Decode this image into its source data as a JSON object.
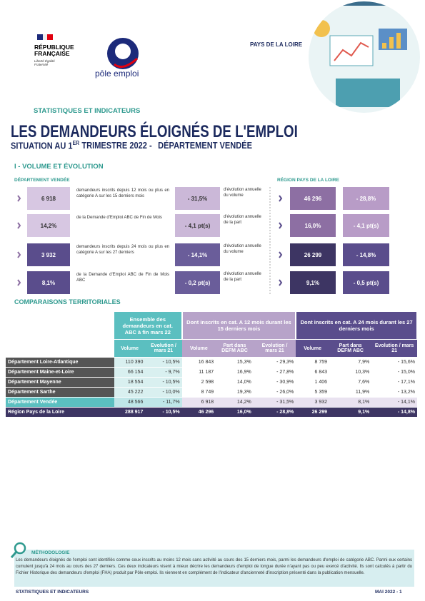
{
  "header": {
    "republique": "RÉPUBLIQUE FRANÇAISE",
    "motto": "Liberté Égalité Fraternité",
    "logo_text": "pôle emploi",
    "region": "PAYS DE LA LOIRE"
  },
  "section_label": "STATISTIQUES ET INDICATEURS",
  "title": "LES DEMANDEURS ÉLOIGNÉS DE L'EMPLOI",
  "subtitle": {
    "main": "SITUATION AU 1",
    "sup": "ER",
    "rest": "TRIMESTRE 2022 -",
    "dept": "DÉPARTEMENT VENDÉE"
  },
  "volume_section": {
    "heading": "I - VOLUME ET ÉVOLUTION",
    "dept_label": "DÉPARTEMENT VENDÉE",
    "region_label": "RÉGION PAYS DE LA LOIRE",
    "rows": [
      {
        "value": "6 918",
        "description": "demandeurs inscrits depuis 12 mois ou plus en catégorie A sur les 15 derniers mois",
        "evolution": "- 31,5%",
        "evolution_description": "d'évolution annuelle du volume",
        "region_value": "46 296",
        "region_evolution": "- 28,8%"
      },
      {
        "value": "14,2%",
        "description": "de la Demande d'Emploi ABC de Fin de Mois",
        "evolution": "- 4,1 pt(s)",
        "evolution_description": "d'évolution annuelle de la part",
        "region_value": "16,0%",
        "region_evolution": "- 4,1 pt(s)"
      },
      {
        "value": "3 932",
        "description": "demandeurs inscrits depuis 24 mois ou plus en catégorie A sur les 27 derniers",
        "evolution": "- 14,1%",
        "evolution_description": "d'évolution annuelle du volume",
        "region_value": "26 299",
        "region_evolution": "- 14,8%"
      },
      {
        "value": "8,1%",
        "description": "de la Demande d'Emploi ABC de Fin de Mois ABC",
        "evolution": "- 0,2 pt(s)",
        "evolution_description": "d'évolution annuelle de la part",
        "region_value": "9,1%",
        "region_evolution": "- 0,5 pt(s)"
      }
    ]
  },
  "comparison": {
    "heading": "COMPARAISONS TERRITORIALES",
    "groups": [
      "Ensemble des demandeurs en cat. ABC à fin mars 22",
      "Dont inscrits en cat. A 12 mois durant les 15 derniers mois",
      "Dont inscrits en cat. A 24 mois durant les 27 derniers mois"
    ],
    "columns": [
      "Volume",
      "Evolution / mars 21",
      "Volume",
      "Part dans DEFM ABC",
      "Evolution / mars 21",
      "Volume",
      "Part dans DEFM ABC",
      "Evolution / mars 21"
    ],
    "rows": [
      [
        "Département Loire-Atlantique",
        "110 390",
        "- 10,5%",
        "16 843",
        "15,3%",
        "- 29,3%",
        "8 759",
        "7,9%",
        "- 15,6%"
      ],
      [
        "Département Maine-et-Loire",
        "66 154",
        "- 9,7%",
        "11 187",
        "16,9%",
        "- 27,8%",
        "6 843",
        "10,3%",
        "- 15,0%"
      ],
      [
        "Département Mayenne",
        "18 554",
        "- 10,5%",
        "2 598",
        "14,0%",
        "- 30,9%",
        "1 406",
        "7,6%",
        "- 17,1%"
      ],
      [
        "Département Sarthe",
        "45 222",
        "- 10,0%",
        "8 749",
        "19,3%",
        "- 26,0%",
        "5 359",
        "11,9%",
        "- 13,2%"
      ],
      [
        "Département Vendée",
        "48 566",
        "- 11,7%",
        "6 918",
        "14,2%",
        "- 31,5%",
        "3 932",
        "8,1%",
        "- 14,1%"
      ],
      [
        "Région Pays de la Loire",
        "288 917",
        "- 10,5%",
        "46 296",
        "16,0%",
        "- 28,8%",
        "26 299",
        "9,1%",
        "- 14,8%"
      ]
    ]
  },
  "methodology": {
    "title": "MÉTHODOLOGIE",
    "text": "Les demandeurs éloignés de l'emploi sont identifiés comme ceux inscrits au moins 12 mois sans activité au cours des 15 derniers mois, parmi les demandeurs d'emploi de catégorie ABC. Parmi eux certains cumulent jusqu'à 24 mois au cours des 27 derniers. Ces deux indicateurs visent à mieux décrire les demandeurs d'emploi de longue durée n'ayant pas ou peu exercé d'activité. Ils sont calculés à partir du Fichier Historique des demandeurs d'emploi (FHA) produit par Pôle emploi. Ils viennent en complément de l'indicateur d'ancienneté d'inscription présenté dans la publication mensuelle."
  },
  "footer": {
    "left": "STATISTIQUES ET INDICATEURS",
    "right": "MAI 2022 - 1"
  }
}
